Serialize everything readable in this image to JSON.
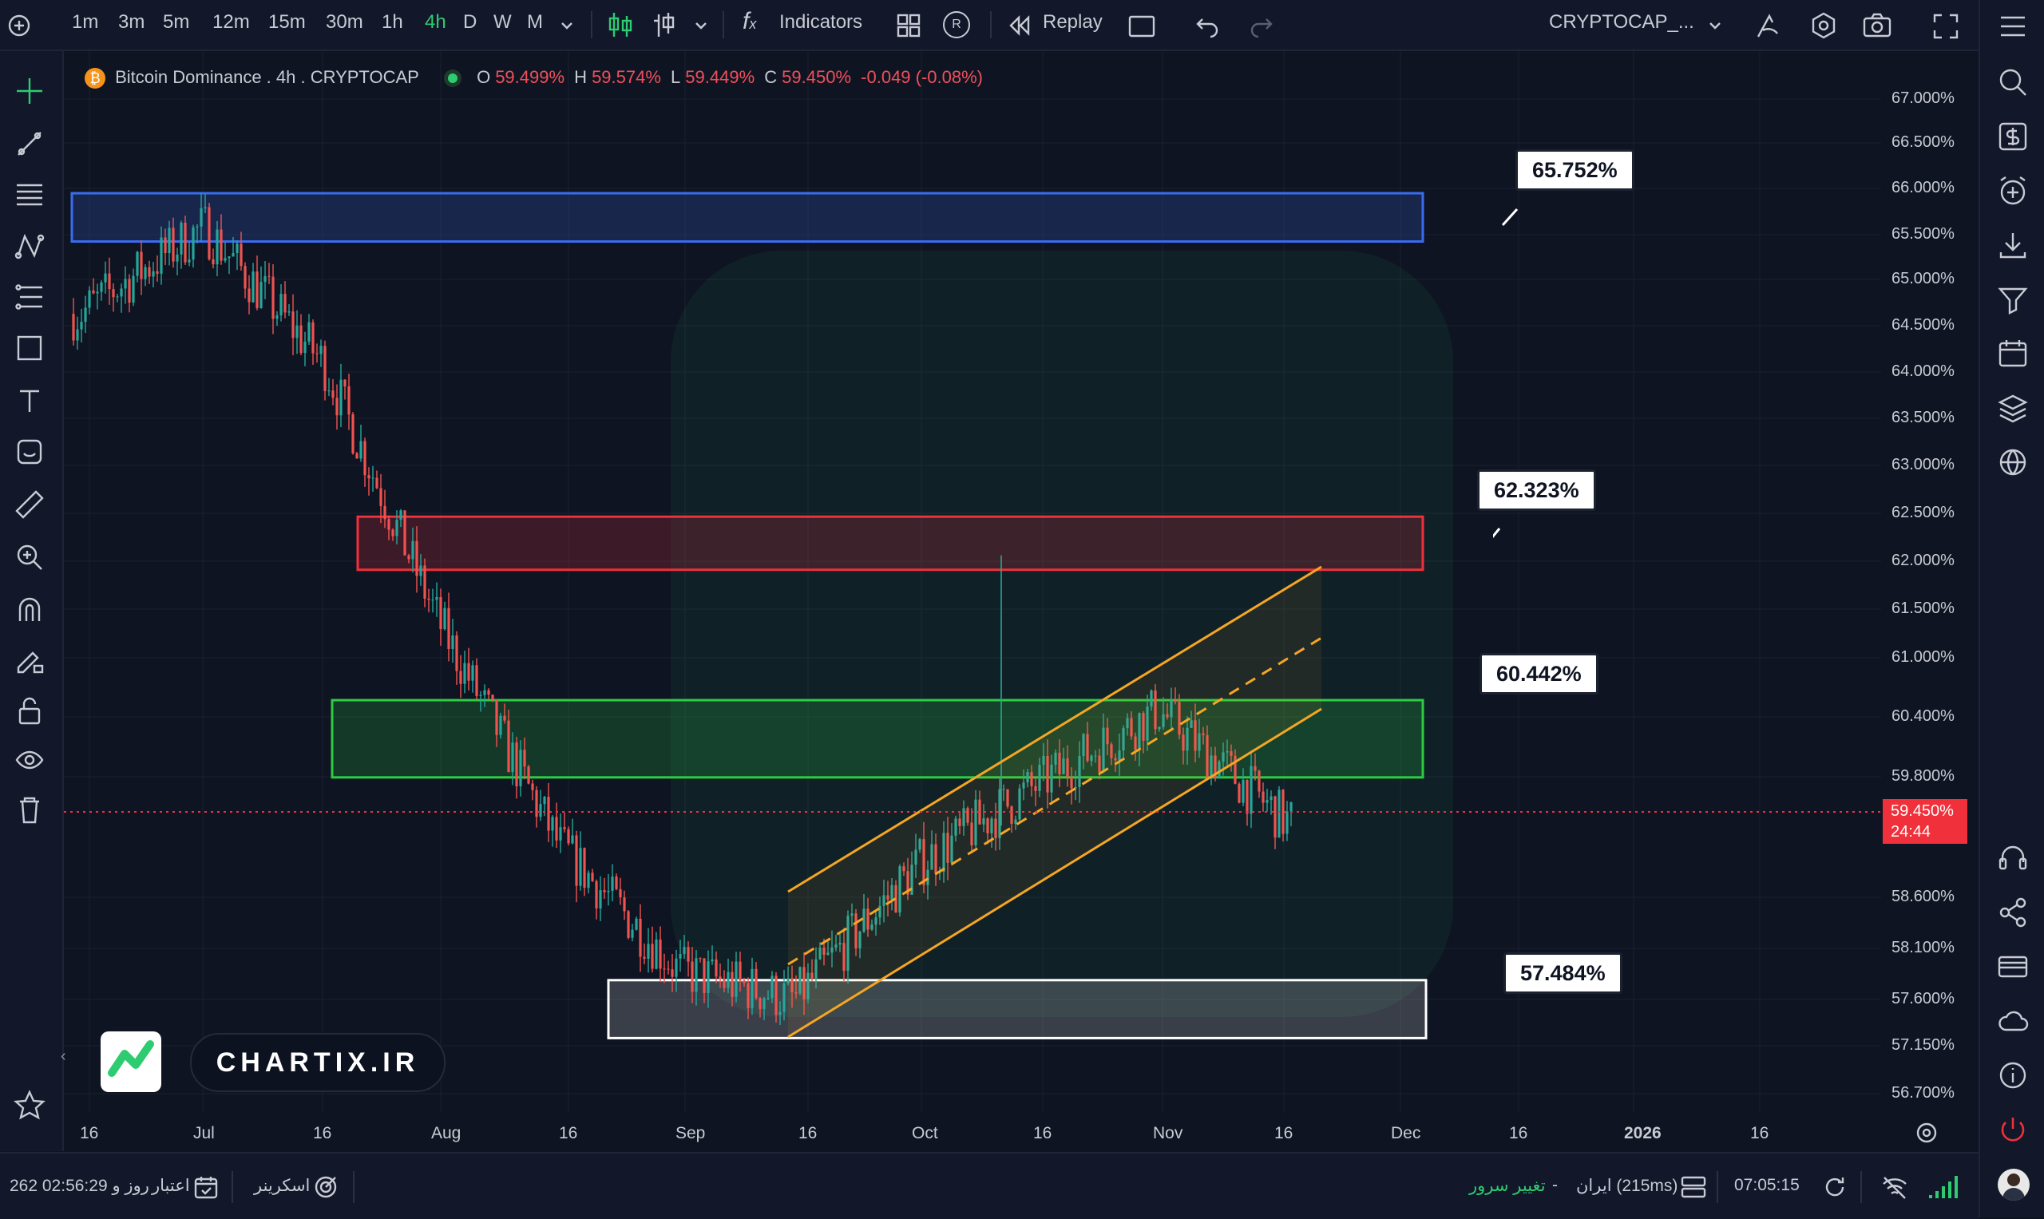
{
  "toolbar": {
    "timeframes": [
      "1m",
      "3m",
      "5m",
      "12m",
      "15m",
      "30m",
      "1h",
      "4h",
      "D",
      "W",
      "M"
    ],
    "active_timeframe": "4h",
    "indicators_label": "Indicators",
    "replay_label": "Replay",
    "r_badge": "R",
    "symbol_label": "CRYPTOCAP_..."
  },
  "legend": {
    "symbol": "Bitcoin Dominance . 4h . CRYPTOCAP",
    "open_label": "O",
    "open": "59.499%",
    "high_label": "H",
    "high": "59.574%",
    "low_label": "L",
    "low": "59.449%",
    "close_label": "C",
    "close": "59.450%",
    "change": "-0.049 (-0.08%)"
  },
  "levels": [
    {
      "label": "65.752%",
      "color": "#3a6cf0"
    },
    {
      "label": "62.323%",
      "color": "#f0303a"
    },
    {
      "label": "60.442%",
      "color": "#2ecc40"
    },
    {
      "label": "57.484%",
      "color": "#ffffff"
    }
  ],
  "price_axis": [
    "67.000%",
    "66.500%",
    "66.000%",
    "65.500%",
    "65.000%",
    "64.500%",
    "64.000%",
    "63.500%",
    "63.000%",
    "62.500%",
    "62.000%",
    "61.500%",
    "61.000%",
    "60.400%",
    "59.800%",
    "58.600%",
    "58.100%",
    "57.600%",
    "57.150%",
    "56.700%"
  ],
  "current_price": {
    "value": "59.450%",
    "countdown": "24:44"
  },
  "time_axis": [
    "16",
    "Jul",
    "16",
    "Aug",
    "16",
    "Sep",
    "16",
    "Oct",
    "16",
    "Nov",
    "16",
    "Dec",
    "16",
    "2026",
    "16"
  ],
  "watermark": {
    "brand": "CHARTIX.IR"
  },
  "status": {
    "credit": "262 روز و 02:56:29",
    "credit_label": "اعتبار",
    "screener": "اسکرینر",
    "server_change": "تغییر سرور",
    "dash": "-",
    "server": "ایران (215ms)",
    "time": "07:05:15"
  },
  "chart_data": {
    "type": "candlestick",
    "symbol": "Bitcoin Dominance",
    "interval": "4h",
    "ylim": [
      56.5,
      67.2
    ],
    "x": [
      "Jun 16",
      "Jul 1",
      "Jul 16",
      "Aug 1",
      "Aug 16",
      "Sep 1",
      "Sep 16",
      "Oct 1",
      "Oct 16",
      "Nov 1",
      "Nov 16"
    ],
    "close_approx": [
      64.7,
      65.6,
      64.2,
      61.5,
      59.2,
      57.9,
      57.6,
      59.0,
      59.8,
      60.6,
      59.45
    ],
    "zones": [
      {
        "from": 65.45,
        "to": 65.95,
        "level": 65.752
      },
      {
        "from": 62.05,
        "to": 62.6,
        "level": 62.323
      },
      {
        "from": 59.9,
        "to": 60.7,
        "level": 60.442
      },
      {
        "from": 57.2,
        "to": 57.8,
        "level": 57.484
      }
    ],
    "last_close": 59.45
  }
}
